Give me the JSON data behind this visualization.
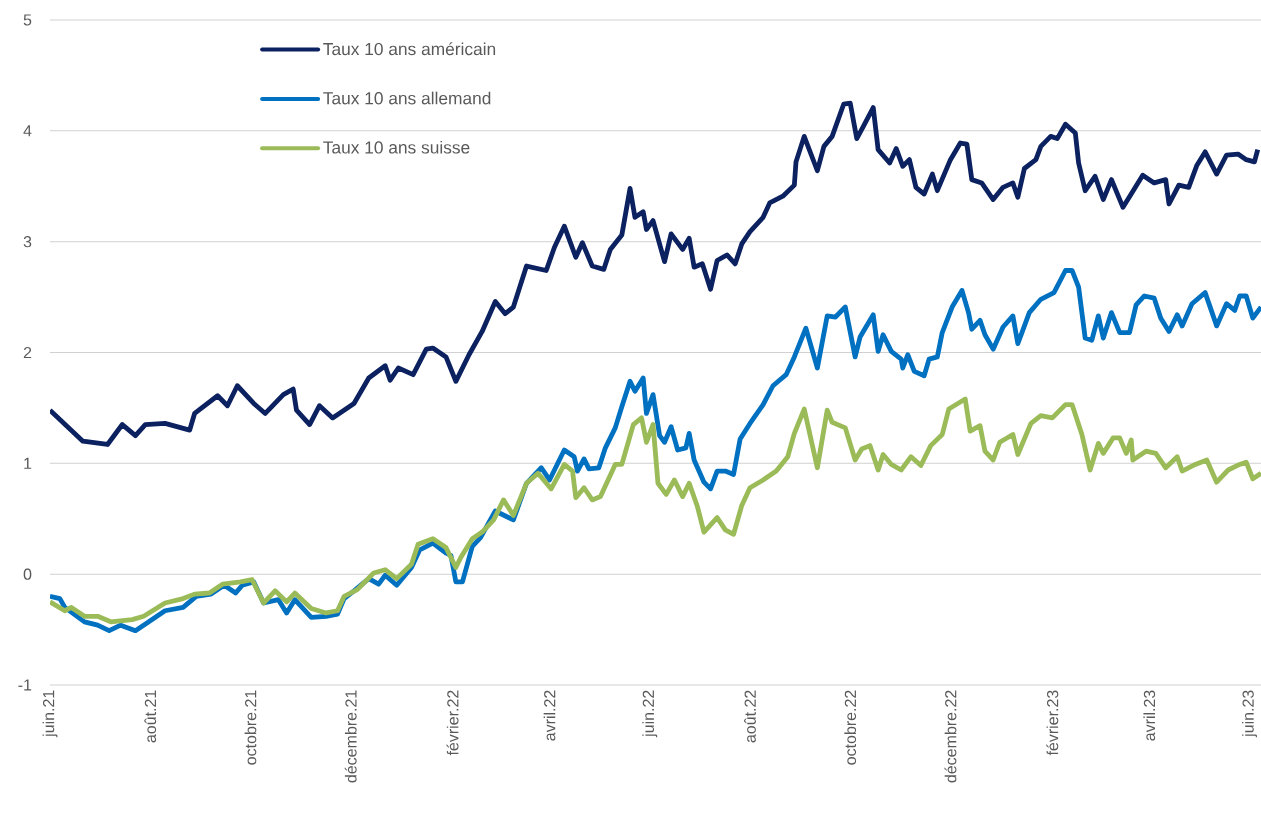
{
  "chart_data": {
    "type": "line",
    "xlim": [
      "2021-06-01",
      "2023-06-08"
    ],
    "ylim": [
      -1,
      5
    ],
    "yticks": [
      -1,
      0,
      1,
      2,
      3,
      4,
      5
    ],
    "xticks": [
      {
        "value": "2021-06-01",
        "label": "juin.21"
      },
      {
        "value": "2021-08-01",
        "label": "août.21"
      },
      {
        "value": "2021-10-01",
        "label": "octobre.21"
      },
      {
        "value": "2021-12-01",
        "label": "décembre.21"
      },
      {
        "value": "2022-02-01",
        "label": "février.22"
      },
      {
        "value": "2022-04-01",
        "label": "avril.22"
      },
      {
        "value": "2022-06-01",
        "label": "juin.22"
      },
      {
        "value": "2022-08-01",
        "label": "août.22"
      },
      {
        "value": "2022-10-01",
        "label": "octobre.22"
      },
      {
        "value": "2022-12-01",
        "label": "décembre.22"
      },
      {
        "value": "2023-02-01",
        "label": "février.23"
      },
      {
        "value": "2023-04-01",
        "label": "avril.23"
      },
      {
        "value": "2023-06-01",
        "label": "juin.23"
      }
    ],
    "grid": "y",
    "legend": "top left",
    "line_style": "solid",
    "series": [
      {
        "name": "Taux 10 ans américain",
        "color": "#0b2160",
        "x": [
          "2021-06-01",
          "2021-06-21",
          "2021-07-06",
          "2021-07-15",
          "2021-07-23",
          "2021-07-29",
          "2021-08-10",
          "2021-08-25",
          "2021-08-28",
          "2021-09-11",
          "2021-09-17",
          "2021-09-23",
          "2021-10-03",
          "2021-10-10",
          "2021-10-21",
          "2021-10-27",
          "2021-10-29",
          "2021-11-06",
          "2021-11-12",
          "2021-11-20",
          "2021-12-03",
          "2021-12-12",
          "2021-12-22",
          "2021-12-25",
          "2021-12-30",
          "2022-01-08",
          "2022-01-16",
          "2022-01-20",
          "2022-01-28",
          "2022-02-03",
          "2022-02-11",
          "2022-02-19",
          "2022-02-27",
          "2022-03-05",
          "2022-03-10",
          "2022-03-18",
          "2022-03-30",
          "2022-04-04",
          "2022-04-10",
          "2022-04-17",
          "2022-04-21",
          "2022-04-27",
          "2022-05-04",
          "2022-05-08",
          "2022-05-15",
          "2022-05-20",
          "2022-05-23",
          "2022-05-28",
          "2022-05-30",
          "2022-06-03",
          "2022-06-10",
          "2022-06-14",
          "2022-06-21",
          "2022-06-25",
          "2022-06-28",
          "2022-07-03",
          "2022-07-08",
          "2022-07-12",
          "2022-07-18",
          "2022-07-23",
          "2022-07-27",
          "2022-08-01",
          "2022-08-09",
          "2022-08-13",
          "2022-08-21",
          "2022-08-28",
          "2022-08-29",
          "2022-09-03",
          "2022-09-11",
          "2022-09-15",
          "2022-09-20",
          "2022-09-27",
          "2022-10-01",
          "2022-10-05",
          "2022-10-09",
          "2022-10-15",
          "2022-10-18",
          "2022-10-25",
          "2022-10-29",
          "2022-11-02",
          "2022-11-06",
          "2022-11-10",
          "2022-11-15",
          "2022-11-20",
          "2022-11-23",
          "2022-12-01",
          "2022-12-07",
          "2022-12-11",
          "2022-12-14",
          "2022-12-20",
          "2022-12-27",
          "2023-01-02",
          "2023-01-08",
          "2023-01-11",
          "2023-01-15",
          "2023-01-22",
          "2023-01-25",
          "2023-01-31",
          "2023-02-04",
          "2023-02-09",
          "2023-02-15",
          "2023-02-17",
          "2023-02-21",
          "2023-02-27",
          "2023-03-04",
          "2023-03-09",
          "2023-03-16",
          "2023-03-21",
          "2023-03-28",
          "2023-04-04",
          "2023-04-11",
          "2023-04-13",
          "2023-04-19",
          "2023-04-25",
          "2023-04-30",
          "2023-05-05",
          "2023-05-12",
          "2023-05-18",
          "2023-05-25",
          "2023-05-30",
          "2023-06-04",
          "2023-06-06"
        ],
        "values": [
          1.48,
          1.2,
          1.17,
          1.35,
          1.25,
          1.35,
          1.36,
          1.3,
          1.45,
          1.61,
          1.52,
          1.7,
          1.54,
          1.45,
          1.62,
          1.67,
          1.48,
          1.35,
          1.52,
          1.41,
          1.54,
          1.77,
          1.88,
          1.75,
          1.86,
          1.8,
          2.03,
          2.04,
          1.96,
          1.74,
          1.98,
          2.19,
          2.46,
          2.35,
          2.41,
          2.78,
          2.74,
          2.95,
          3.14,
          2.86,
          2.99,
          2.78,
          2.75,
          2.93,
          3.06,
          3.48,
          3.22,
          3.27,
          3.11,
          3.19,
          2.82,
          3.07,
          2.93,
          3.03,
          2.77,
          2.8,
          2.57,
          2.83,
          2.88,
          2.8,
          2.98,
          3.09,
          3.22,
          3.35,
          3.41,
          3.51,
          3.72,
          3.95,
          3.64,
          3.86,
          3.95,
          4.24,
          4.25,
          3.93,
          4.04,
          4.21,
          3.83,
          3.71,
          3.84,
          3.68,
          3.74,
          3.49,
          3.43,
          3.61,
          3.46,
          3.74,
          3.89,
          3.88,
          3.56,
          3.53,
          3.38,
          3.49,
          3.53,
          3.4,
          3.66,
          3.74,
          3.86,
          3.95,
          3.93,
          4.06,
          3.98,
          3.71,
          3.46,
          3.59,
          3.38,
          3.56,
          3.31,
          3.43,
          3.6,
          3.53,
          3.56,
          3.34,
          3.51,
          3.49,
          3.69,
          3.81,
          3.61,
          3.78,
          3.79,
          3.74,
          3.72,
          3.83
        ]
      },
      {
        "name": "Taux 10 ans allemand",
        "color": "#0070c0",
        "x": [
          "2021-06-01",
          "2021-06-07",
          "2021-06-10",
          "2021-06-22",
          "2021-06-30",
          "2021-07-07",
          "2021-07-14",
          "2021-07-23",
          "2021-07-30",
          "2021-08-10",
          "2021-08-21",
          "2021-08-29",
          "2021-09-07",
          "2021-09-15",
          "2021-09-22",
          "2021-09-26",
          "2021-10-03",
          "2021-10-09",
          "2021-10-18",
          "2021-10-23",
          "2021-10-28",
          "2021-11-07",
          "2021-11-16",
          "2021-11-23",
          "2021-11-27",
          "2021-12-03",
          "2021-12-12",
          "2021-12-18",
          "2021-12-22",
          "2021-12-29",
          "2022-01-07",
          "2022-01-12",
          "2022-01-20",
          "2022-01-28",
          "2022-01-31",
          "2022-02-03",
          "2022-02-07",
          "2022-02-13",
          "2022-02-18",
          "2022-02-27",
          "2022-03-10",
          "2022-03-18",
          "2022-03-27",
          "2022-04-01",
          "2022-04-10",
          "2022-04-16",
          "2022-04-18",
          "2022-04-22",
          "2022-04-25",
          "2022-05-01",
          "2022-05-05",
          "2022-05-11",
          "2022-05-15",
          "2022-05-20",
          "2022-05-23",
          "2022-05-28",
          "2022-05-30",
          "2022-06-03",
          "2022-06-07",
          "2022-06-10",
          "2022-06-14",
          "2022-06-18",
          "2022-06-23",
          "2022-06-25",
          "2022-06-28",
          "2022-07-04",
          "2022-07-08",
          "2022-07-12",
          "2022-07-17",
          "2022-07-22",
          "2022-07-26",
          "2022-08-01",
          "2022-08-09",
          "2022-08-15",
          "2022-08-23",
          "2022-08-28",
          "2022-09-04",
          "2022-09-11",
          "2022-09-17",
          "2022-09-22",
          "2022-09-28",
          "2022-10-04",
          "2022-10-07",
          "2022-10-15",
          "2022-10-18",
          "2022-10-21",
          "2022-10-26",
          "2022-11-01",
          "2022-11-02",
          "2022-11-05",
          "2022-11-09",
          "2022-11-15",
          "2022-11-18",
          "2022-11-23",
          "2022-11-26",
          "2022-12-02",
          "2022-12-08",
          "2022-12-12",
          "2022-12-14",
          "2022-12-19",
          "2022-12-22",
          "2022-12-27",
          "2023-01-02",
          "2023-01-08",
          "2023-01-11",
          "2023-01-18",
          "2023-01-25",
          "2023-02-02",
          "2023-02-09",
          "2023-02-13",
          "2023-02-17",
          "2023-02-21",
          "2023-02-25",
          "2023-03-01",
          "2023-03-04",
          "2023-03-09",
          "2023-03-14",
          "2023-03-20",
          "2023-03-24",
          "2023-03-29",
          "2023-04-04",
          "2023-04-08",
          "2023-04-13",
          "2023-04-18",
          "2023-04-21",
          "2023-04-27",
          "2023-05-05",
          "2023-05-12",
          "2023-05-18",
          "2023-05-23",
          "2023-05-26",
          "2023-05-30",
          "2023-06-03",
          "2023-06-08"
        ],
        "values": [
          -0.2,
          -0.22,
          -0.3,
          -0.43,
          -0.46,
          -0.51,
          -0.46,
          -0.51,
          -0.44,
          -0.33,
          -0.3,
          -0.2,
          -0.18,
          -0.1,
          -0.17,
          -0.1,
          -0.07,
          -0.26,
          -0.23,
          -0.35,
          -0.23,
          -0.39,
          -0.38,
          -0.36,
          -0.22,
          -0.15,
          -0.04,
          -0.09,
          -0.01,
          -0.1,
          0.06,
          0.22,
          0.28,
          0.19,
          0.17,
          -0.07,
          -0.07,
          0.25,
          0.33,
          0.57,
          0.49,
          0.82,
          0.96,
          0.85,
          1.12,
          1.06,
          0.93,
          1.04,
          0.95,
          0.96,
          1.14,
          1.32,
          1.51,
          1.74,
          1.65,
          1.77,
          1.45,
          1.62,
          1.25,
          1.19,
          1.33,
          1.12,
          1.14,
          1.27,
          1.03,
          0.83,
          0.77,
          0.93,
          0.93,
          0.9,
          1.22,
          1.36,
          1.53,
          1.7,
          1.8,
          1.96,
          2.22,
          1.86,
          2.33,
          2.32,
          2.41,
          1.96,
          2.14,
          2.34,
          2.01,
          2.16,
          2.01,
          1.94,
          1.86,
          1.98,
          1.83,
          1.79,
          1.94,
          1.96,
          2.18,
          2.41,
          2.56,
          2.36,
          2.21,
          2.29,
          2.16,
          2.03,
          2.23,
          2.33,
          2.08,
          2.36,
          2.48,
          2.54,
          2.74,
          2.74,
          2.59,
          2.13,
          2.11,
          2.33,
          2.13,
          2.36,
          2.18,
          2.18,
          2.43,
          2.51,
          2.49,
          2.31,
          2.19,
          2.34,
          2.24,
          2.44,
          2.54,
          2.24,
          2.44,
          2.38,
          2.51,
          2.51,
          2.31,
          2.41
        ]
      },
      {
        "name": "Taux 10 ans suisse",
        "color": "#9bbb59",
        "x": [
          "2021-06-01",
          "2021-06-10",
          "2021-06-14",
          "2021-06-22",
          "2021-06-30",
          "2021-07-08",
          "2021-07-21",
          "2021-07-28",
          "2021-08-10",
          "2021-08-21",
          "2021-08-28",
          "2021-09-06",
          "2021-09-14",
          "2021-09-25",
          "2021-10-02",
          "2021-10-09",
          "2021-10-16",
          "2021-10-23",
          "2021-10-28",
          "2021-11-07",
          "2021-11-16",
          "2021-11-23",
          "2021-11-27",
          "2021-12-05",
          "2021-12-15",
          "2021-12-22",
          "2021-12-29",
          "2022-01-07",
          "2022-01-11",
          "2022-01-20",
          "2022-01-28",
          "2022-02-03",
          "2022-02-06",
          "2022-02-13",
          "2022-02-19",
          "2022-02-26",
          "2022-03-04",
          "2022-03-10",
          "2022-03-18",
          "2022-03-25",
          "2022-04-02",
          "2022-04-10",
          "2022-04-15",
          "2022-04-17",
          "2022-04-22",
          "2022-04-27",
          "2022-05-02",
          "2022-05-11",
          "2022-05-15",
          "2022-05-22",
          "2022-05-27",
          "2022-05-30",
          "2022-06-03",
          "2022-06-06",
          "2022-06-11",
          "2022-06-16",
          "2022-06-21",
          "2022-06-25",
          "2022-06-30",
          "2022-07-04",
          "2022-07-12",
          "2022-07-17",
          "2022-07-22",
          "2022-07-27",
          "2022-08-01",
          "2022-08-09",
          "2022-08-17",
          "2022-08-24",
          "2022-08-28",
          "2022-09-03",
          "2022-09-11",
          "2022-09-17",
          "2022-09-20",
          "2022-09-28",
          "2022-10-04",
          "2022-10-08",
          "2022-10-13",
          "2022-10-18",
          "2022-10-21",
          "2022-10-26",
          "2022-11-01",
          "2022-11-07",
          "2022-11-13",
          "2022-11-19",
          "2022-11-26",
          "2022-11-30",
          "2022-12-10",
          "2022-12-13",
          "2022-12-19",
          "2022-12-22",
          "2022-12-27",
          "2022-12-31",
          "2023-01-08",
          "2023-01-11",
          "2023-01-19",
          "2023-01-25",
          "2023-02-01",
          "2023-02-09",
          "2023-02-13",
          "2023-02-19",
          "2023-02-24",
          "2023-03-01",
          "2023-03-04",
          "2023-03-10",
          "2023-03-14",
          "2023-03-18",
          "2023-03-21",
          "2023-03-22",
          "2023-03-30",
          "2023-04-05",
          "2023-04-11",
          "2023-04-18",
          "2023-04-21",
          "2023-04-29",
          "2023-05-06",
          "2023-05-12",
          "2023-05-19",
          "2023-05-26",
          "2023-05-30",
          "2023-06-03",
          "2023-06-08"
        ],
        "values": [
          -0.25,
          -0.33,
          -0.3,
          -0.38,
          -0.38,
          -0.43,
          -0.41,
          -0.38,
          -0.26,
          -0.22,
          -0.18,
          -0.17,
          -0.09,
          -0.07,
          -0.05,
          -0.26,
          -0.15,
          -0.25,
          -0.17,
          -0.31,
          -0.35,
          -0.33,
          -0.2,
          -0.14,
          0.01,
          0.04,
          -0.04,
          0.09,
          0.27,
          0.32,
          0.24,
          0.06,
          0.15,
          0.32,
          0.38,
          0.49,
          0.67,
          0.53,
          0.82,
          0.91,
          0.77,
          0.99,
          0.93,
          0.69,
          0.78,
          0.67,
          0.7,
          0.99,
          0.99,
          1.35,
          1.41,
          1.19,
          1.35,
          0.82,
          0.72,
          0.85,
          0.7,
          0.82,
          0.61,
          0.38,
          0.51,
          0.4,
          0.36,
          0.62,
          0.78,
          0.85,
          0.93,
          1.06,
          1.27,
          1.49,
          0.96,
          1.48,
          1.37,
          1.32,
          1.03,
          1.13,
          1.16,
          0.94,
          1.08,
          0.99,
          0.94,
          1.06,
          0.98,
          1.16,
          1.26,
          1.49,
          1.58,
          1.29,
          1.34,
          1.11,
          1.03,
          1.19,
          1.26,
          1.08,
          1.36,
          1.43,
          1.41,
          1.53,
          1.53,
          1.26,
          0.94,
          1.18,
          1.09,
          1.23,
          1.23,
          1.09,
          1.21,
          1.03,
          1.11,
          1.09,
          0.96,
          1.06,
          0.93,
          0.99,
          1.03,
          0.83,
          0.94,
          0.99,
          1.01,
          0.86,
          0.91
        ]
      }
    ]
  }
}
